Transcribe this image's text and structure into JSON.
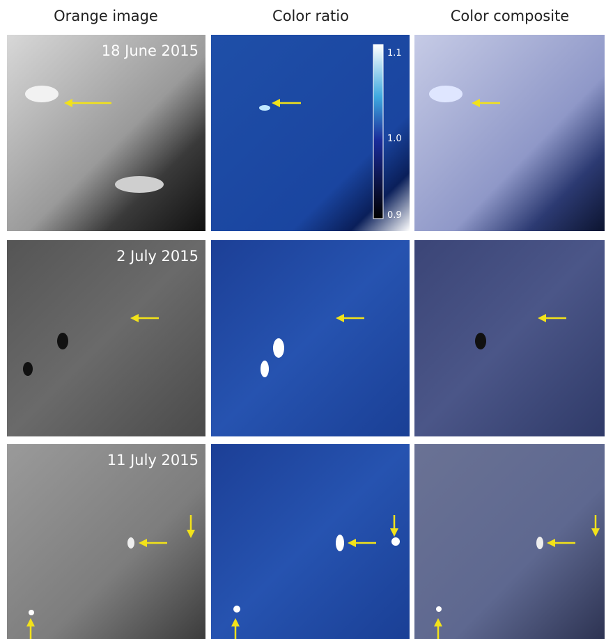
{
  "columns": [
    "Orange image",
    "Color ratio",
    "Color composite"
  ],
  "rows": [
    "18 June 2015",
    "2 July 2015",
    "11 July 2015"
  ],
  "colorbar": {
    "ticks": [
      "1.1",
      "1.0",
      "0.9"
    ]
  }
}
